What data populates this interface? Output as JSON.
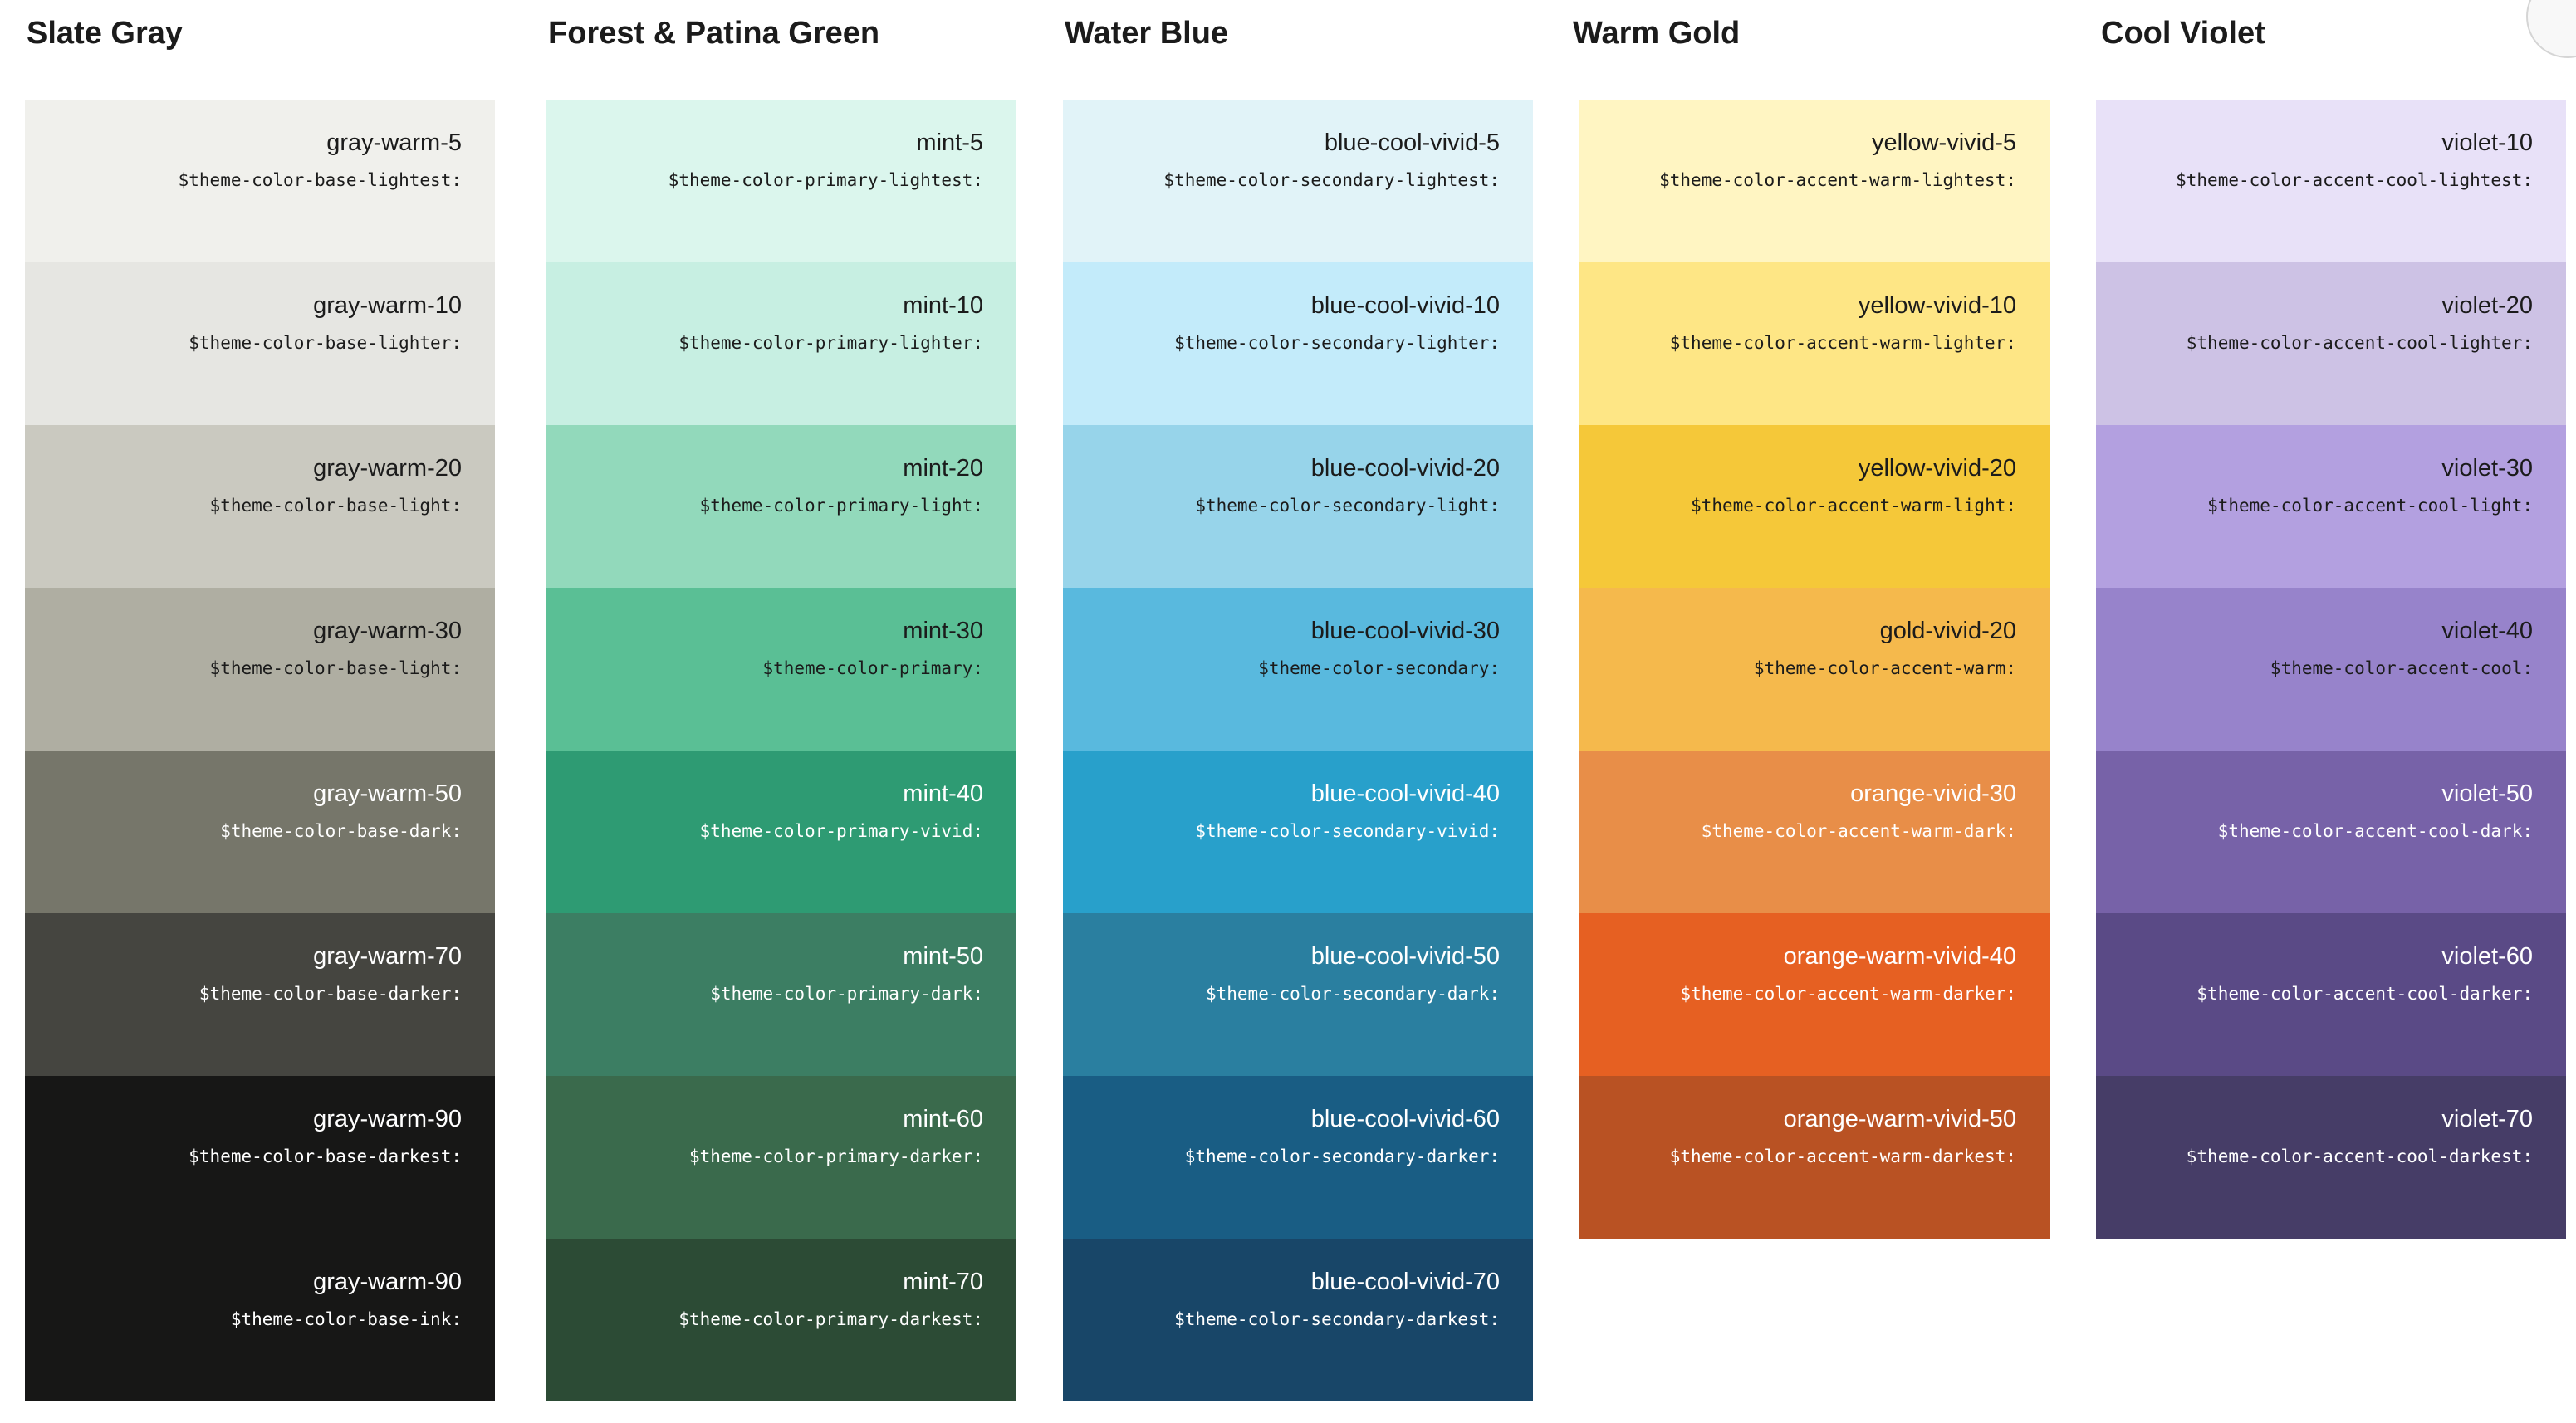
{
  "palettes": [
    {
      "id": "slate-gray",
      "title": "Slate Gray",
      "swatches": [
        {
          "name": "gray-warm-5",
          "token": "$theme-color-base-lightest:",
          "color": "#f0f0ec",
          "text": "#1b1b1b"
        },
        {
          "name": "gray-warm-10",
          "token": "$theme-color-base-lighter:",
          "color": "#e6e6e2",
          "text": "#1b1b1b"
        },
        {
          "name": "gray-warm-20",
          "token": "$theme-color-base-light:",
          "color": "#cac9c0",
          "text": "#1b1b1b"
        },
        {
          "name": "gray-warm-30",
          "token": "$theme-color-base-light:",
          "color": "#afaea2",
          "text": "#1b1b1b"
        },
        {
          "name": "gray-warm-50",
          "token": "$theme-color-base-dark:",
          "color": "#76766a",
          "text": "#ffffff"
        },
        {
          "name": "gray-warm-70",
          "token": "$theme-color-base-darker:",
          "color": "#454540",
          "text": "#ffffff"
        },
        {
          "name": "gray-warm-90",
          "token": "$theme-color-base-darkest:",
          "color": "#171716",
          "text": "#ffffff"
        },
        {
          "name": "gray-warm-90",
          "token": "$theme-color-base-ink:",
          "color": "#171716",
          "text": "#ffffff"
        }
      ]
    },
    {
      "id": "forest-patina-green",
      "title": "Forest & Patina Green",
      "swatches": [
        {
          "name": "mint-5",
          "token": "$theme-color-primary-lightest:",
          "color": "#dbf6ed",
          "text": "#1b1b1b"
        },
        {
          "name": "mint-10",
          "token": "$theme-color-primary-lighter:",
          "color": "#c7efe2",
          "text": "#1b1b1b"
        },
        {
          "name": "mint-20",
          "token": "$theme-color-primary-light:",
          "color": "#92d9bb",
          "text": "#1b1b1b"
        },
        {
          "name": "mint-30",
          "token": "$theme-color-primary:",
          "color": "#5abf95",
          "text": "#1b1b1b"
        },
        {
          "name": "mint-40",
          "token": "$theme-color-primary-vivid:",
          "color": "#2e9b73",
          "text": "#ffffff"
        },
        {
          "name": "mint-50",
          "token": "$theme-color-primary-dark:",
          "color": "#3c7e63",
          "text": "#ffffff"
        },
        {
          "name": "mint-60",
          "token": "$theme-color-primary-darker:",
          "color": "#3a6a4c",
          "text": "#ffffff"
        },
        {
          "name": "mint-70",
          "token": "$theme-color-primary-darkest:",
          "color": "#2c4b35",
          "text": "#ffffff"
        }
      ]
    },
    {
      "id": "water-blue",
      "title": "Water Blue",
      "swatches": [
        {
          "name": "blue-cool-vivid-5",
          "token": "$theme-color-secondary-lightest:",
          "color": "#e1f3f8",
          "text": "#1b1b1b"
        },
        {
          "name": "blue-cool-vivid-10",
          "token": "$theme-color-secondary-lighter:",
          "color": "#c3ebfa",
          "text": "#1b1b1b"
        },
        {
          "name": "blue-cool-vivid-20",
          "token": "$theme-color-secondary-light:",
          "color": "#97d4ea",
          "text": "#1b1b1b"
        },
        {
          "name": "blue-cool-vivid-30",
          "token": "$theme-color-secondary:",
          "color": "#59b9de",
          "text": "#1b1b1b"
        },
        {
          "name": "blue-cool-vivid-40",
          "token": "$theme-color-secondary-vivid:",
          "color": "#28a0cb",
          "text": "#ffffff"
        },
        {
          "name": "blue-cool-vivid-50",
          "token": "$theme-color-secondary-dark:",
          "color": "#2a7fa0",
          "text": "#ffffff"
        },
        {
          "name": "blue-cool-vivid-60",
          "token": "$theme-color-secondary-darker:",
          "color": "#195d84",
          "text": "#ffffff"
        },
        {
          "name": "blue-cool-vivid-70",
          "token": "$theme-color-secondary-darkest:",
          "color": "#184668",
          "text": "#ffffff"
        }
      ]
    },
    {
      "id": "warm-gold",
      "title": "Warm Gold",
      "swatches": [
        {
          "name": "yellow-vivid-5",
          "token": "$theme-color-accent-warm-lightest:",
          "color": "#fff5c2",
          "text": "#1b1b1b"
        },
        {
          "name": "yellow-vivid-10",
          "token": "$theme-color-accent-warm-lighter:",
          "color": "#fee685",
          "text": "#1b1b1b"
        },
        {
          "name": "yellow-vivid-20",
          "token": "$theme-color-accent-warm-light:",
          "color": "#f5c839",
          "text": "#1b1b1b"
        },
        {
          "name": "gold-vivid-20",
          "token": "$theme-color-accent-warm:",
          "color": "#f5b94c",
          "text": "#1b1b1b"
        },
        {
          "name": "orange-vivid-30",
          "token": "$theme-color-accent-warm-dark:",
          "color": "#e88e48",
          "text": "#ffffff"
        },
        {
          "name": "orange-warm-vivid-40",
          "token": "$theme-color-accent-warm-darker:",
          "color": "#e66022",
          "text": "#ffffff"
        },
        {
          "name": "orange-warm-vivid-50",
          "token": "$theme-color-accent-warm-darkest:",
          "color": "#b95223",
          "text": "#ffffff"
        }
      ]
    },
    {
      "id": "cool-violet",
      "title": "Cool Violet",
      "swatches": [
        {
          "name": "violet-10",
          "token": "$theme-color-accent-cool-lightest:",
          "color": "#e8e1f8",
          "text": "#1b1b1b"
        },
        {
          "name": "violet-20",
          "token": "$theme-color-accent-cool-lighter:",
          "color": "#cdc2e5",
          "text": "#1b1b1b"
        },
        {
          "name": "violet-30",
          "token": "$theme-color-accent-cool-light:",
          "color": "#b3a0e0",
          "text": "#1b1b1b"
        },
        {
          "name": "violet-40",
          "token": "$theme-color-accent-cool:",
          "color": "#9783cb",
          "text": "#1b1b1b"
        },
        {
          "name": "violet-50",
          "token": "$theme-color-accent-cool-dark:",
          "color": "#7762a8",
          "text": "#ffffff"
        },
        {
          "name": "violet-60",
          "token": "$theme-color-accent-cool-darker:",
          "color": "#5a4a86",
          "text": "#ffffff"
        },
        {
          "name": "violet-70",
          "token": "$theme-color-accent-cool-darkest:",
          "color": "#463d67",
          "text": "#ffffff"
        }
      ]
    }
  ]
}
